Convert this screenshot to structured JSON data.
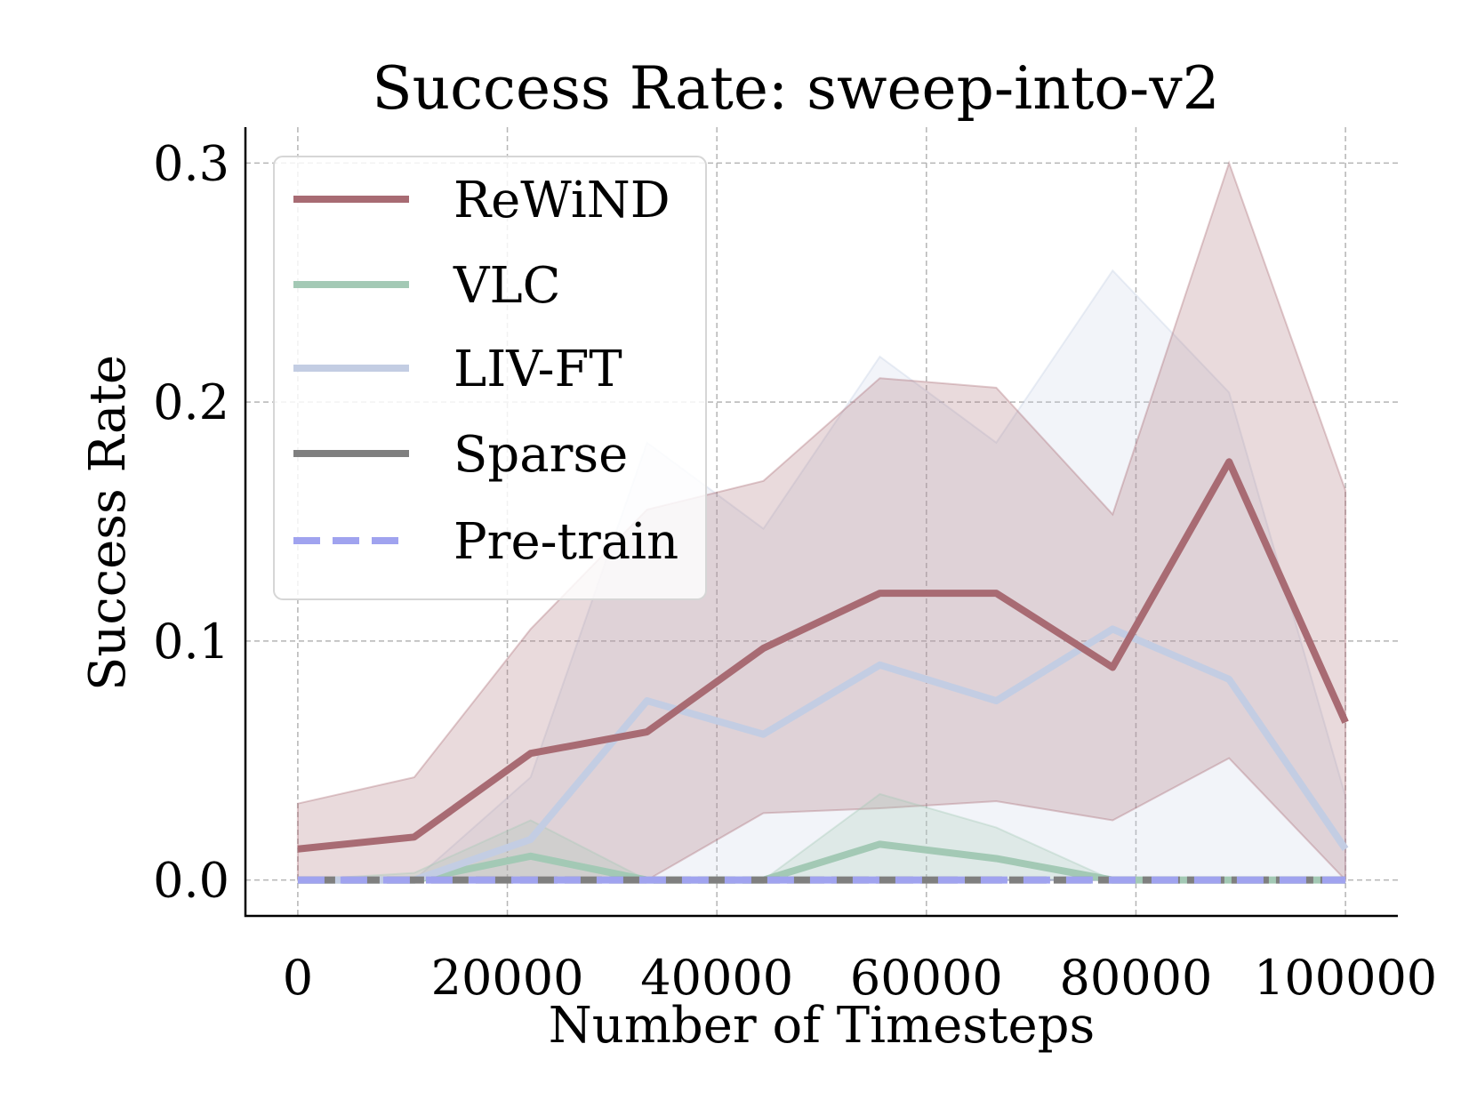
{
  "chart_data": {
    "type": "line",
    "title": "Success Rate: sweep-into-v2",
    "xlabel": "Number of Timesteps",
    "ylabel": "Success Rate",
    "xlim": [
      -5000,
      105000
    ],
    "ylim": [
      -0.015,
      0.315
    ],
    "xticks": [
      0,
      20000,
      40000,
      60000,
      80000,
      100000
    ],
    "yticks": [
      0.0,
      0.1,
      0.2,
      0.3
    ],
    "xtick_labels": [
      "0",
      "20000",
      "40000",
      "60000",
      "80000",
      "100000"
    ],
    "ytick_labels": [
      "0.0",
      "0.1",
      "0.2",
      "0.3"
    ],
    "grid": true,
    "legend_position": "top-left",
    "x": [
      0,
      11111,
      22222,
      33333,
      44444,
      55556,
      66667,
      77778,
      88889,
      100000
    ],
    "series": [
      {
        "name": "ReWiND",
        "color": "#a86b73",
        "dash": false,
        "values": [
          0.013,
          0.018,
          0.053,
          0.062,
          0.097,
          0.12,
          0.12,
          0.089,
          0.175,
          0.066
        ],
        "lower": [
          0.0,
          0.0,
          0.0,
          0.0,
          0.028,
          0.03,
          0.033,
          0.025,
          0.051,
          0.0
        ],
        "upper": [
          0.032,
          0.043,
          0.105,
          0.155,
          0.167,
          0.21,
          0.206,
          0.153,
          0.3,
          0.163
        ]
      },
      {
        "name": "VLC",
        "color": "#a3c9b5",
        "dash": false,
        "values": [
          0.0,
          0.0,
          0.01,
          0.0,
          0.0,
          0.015,
          0.009,
          0.0,
          0.0,
          0.0
        ],
        "lower": [
          0.0,
          0.0,
          0.0,
          0.0,
          0.0,
          0.0,
          0.0,
          0.0,
          0.0,
          0.0
        ],
        "upper": [
          0.0,
          0.003,
          0.025,
          0.0,
          0.0,
          0.036,
          0.022,
          0.0,
          0.0,
          0.0
        ]
      },
      {
        "name": "LIV-FT",
        "color": "#c3cde3",
        "dash": false,
        "values": [
          0.0,
          0.0,
          0.017,
          0.075,
          0.061,
          0.09,
          0.075,
          0.105,
          0.084,
          0.013
        ],
        "lower": [
          0.0,
          0.0,
          0.0,
          0.0,
          0.0,
          0.0,
          0.0,
          0.0,
          0.0,
          0.0
        ],
        "upper": [
          0.0,
          0.0,
          0.043,
          0.183,
          0.147,
          0.219,
          0.183,
          0.255,
          0.204,
          0.035
        ]
      },
      {
        "name": "Sparse",
        "color": "#7f7f7f",
        "dash": false,
        "values": [
          0,
          0,
          0,
          0,
          0,
          0,
          0,
          0,
          0,
          0
        ],
        "lower": [
          0,
          0,
          0,
          0,
          0,
          0,
          0,
          0,
          0,
          0
        ],
        "upper": [
          0,
          0,
          0,
          0,
          0,
          0,
          0,
          0,
          0,
          0
        ]
      },
      {
        "name": "Pre-train",
        "color": "#a0a3ef",
        "dash": true,
        "values": [
          0,
          0,
          0,
          0,
          0,
          0,
          0,
          0,
          0,
          0
        ],
        "lower": [
          0,
          0,
          0,
          0,
          0,
          0,
          0,
          0,
          0,
          0
        ],
        "upper": [
          0,
          0,
          0,
          0,
          0,
          0,
          0,
          0,
          0,
          0
        ]
      }
    ]
  }
}
